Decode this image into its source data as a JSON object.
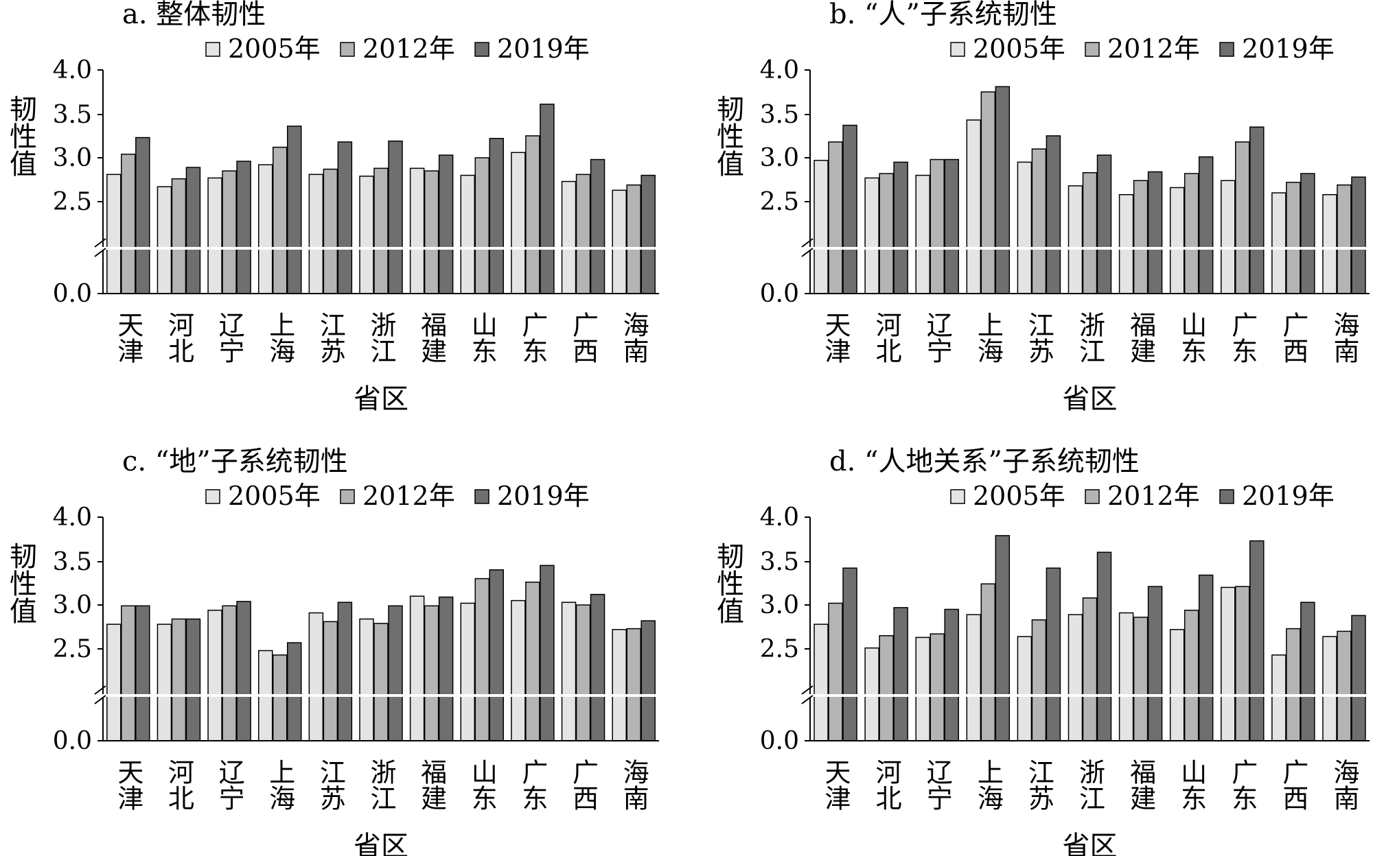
{
  "colors": {
    "series_2005": "#e4e4e4",
    "series_2012": "#b4b4b4",
    "series_2019": "#6f6f6f",
    "bar_stroke": "#000000",
    "break_line": "#ffffff"
  },
  "chart_data": [
    {
      "type": "bar",
      "title": "a. 整体韧性",
      "xlabel": "省区",
      "ylabel": "韧性值",
      "ylim": [
        0,
        4.0
      ],
      "y_axis_break": [
        0.0,
        2.0
      ],
      "yticks": [
        "4.0",
        "3.5",
        "3.0",
        "2.5",
        "0.0"
      ],
      "legend_position": "top-center",
      "categories": [
        "天津",
        "河北",
        "辽宁",
        "上海",
        "江苏",
        "浙江",
        "福建",
        "山东",
        "广东",
        "广西",
        "海南"
      ],
      "series": [
        {
          "name": "2005年",
          "values": [
            2.81,
            2.67,
            2.77,
            2.92,
            2.81,
            2.79,
            2.88,
            2.8,
            3.06,
            2.73,
            2.63
          ]
        },
        {
          "name": "2012年",
          "values": [
            3.04,
            2.76,
            2.85,
            3.12,
            2.87,
            2.88,
            2.85,
            3.0,
            3.25,
            2.81,
            2.69
          ]
        },
        {
          "name": "2019年",
          "values": [
            3.23,
            2.89,
            2.96,
            3.36,
            3.18,
            3.19,
            3.03,
            3.22,
            3.61,
            2.98,
            2.8
          ]
        }
      ]
    },
    {
      "type": "bar",
      "title": "b. “人”子系统韧性",
      "xlabel": "省区",
      "ylabel": "韧性值",
      "ylim": [
        0,
        4.0
      ],
      "y_axis_break": [
        0.0,
        2.0
      ],
      "yticks": [
        "4.0",
        "3.5",
        "3.0",
        "2.5",
        "0.0"
      ],
      "legend_position": "top-right",
      "categories": [
        "天津",
        "河北",
        "辽宁",
        "上海",
        "江苏",
        "浙江",
        "福建",
        "山东",
        "广东",
        "广西",
        "海南"
      ],
      "series": [
        {
          "name": "2005年",
          "values": [
            2.97,
            2.77,
            2.8,
            3.43,
            2.95,
            2.68,
            2.58,
            2.66,
            2.74,
            2.6,
            2.58
          ]
        },
        {
          "name": "2012年",
          "values": [
            3.18,
            2.82,
            2.98,
            3.75,
            3.1,
            2.83,
            2.74,
            2.82,
            3.18,
            2.72,
            2.69
          ]
        },
        {
          "name": "2019年",
          "values": [
            3.37,
            2.95,
            2.98,
            3.81,
            3.25,
            3.03,
            2.84,
            3.01,
            3.35,
            2.82,
            2.78
          ]
        }
      ]
    },
    {
      "type": "bar",
      "title": "c. “地”子系统韧性",
      "xlabel": "省区",
      "ylabel": "韧性值",
      "ylim": [
        0,
        4.0
      ],
      "y_axis_break": [
        0.0,
        2.0
      ],
      "yticks": [
        "4.0",
        "3.5",
        "3.0",
        "2.5",
        "0.0"
      ],
      "legend_position": "top-center",
      "categories": [
        "天津",
        "河北",
        "辽宁",
        "上海",
        "江苏",
        "浙江",
        "福建",
        "山东",
        "广东",
        "广西",
        "海南"
      ],
      "series": [
        {
          "name": "2005年",
          "values": [
            2.78,
            2.78,
            2.94,
            2.48,
            2.91,
            2.84,
            3.1,
            3.02,
            3.05,
            3.03,
            2.72
          ]
        },
        {
          "name": "2012年",
          "values": [
            2.99,
            2.84,
            2.99,
            2.43,
            2.81,
            2.79,
            2.99,
            3.3,
            3.26,
            3.0,
            2.73
          ]
        },
        {
          "name": "2019年",
          "values": [
            2.99,
            2.84,
            3.04,
            2.57,
            3.03,
            2.99,
            3.09,
            3.4,
            3.45,
            3.12,
            2.82
          ]
        }
      ]
    },
    {
      "type": "bar",
      "title": "d. “人地关系”子系统韧性",
      "xlabel": "省区",
      "ylabel": "韧性值",
      "ylim": [
        0,
        4.0
      ],
      "y_axis_break": [
        0.0,
        2.0
      ],
      "yticks": [
        "4.0",
        "3.5",
        "3.0",
        "2.5",
        "0.0"
      ],
      "legend_position": "top-right",
      "categories": [
        "天津",
        "河北",
        "辽宁",
        "上海",
        "江苏",
        "浙江",
        "福建",
        "山东",
        "广东",
        "广西",
        "海南"
      ],
      "series": [
        {
          "name": "2005年",
          "values": [
            2.78,
            2.51,
            2.63,
            2.89,
            2.64,
            2.89,
            2.91,
            2.72,
            3.2,
            2.43,
            2.64
          ]
        },
        {
          "name": "2012年",
          "values": [
            3.02,
            2.65,
            2.67,
            3.24,
            2.83,
            3.08,
            2.86,
            2.94,
            3.21,
            2.73,
            2.7
          ]
        },
        {
          "name": "2019年",
          "values": [
            3.42,
            2.97,
            2.95,
            3.79,
            3.42,
            3.6,
            3.21,
            3.34,
            3.73,
            3.03,
            2.88
          ]
        }
      ]
    }
  ]
}
